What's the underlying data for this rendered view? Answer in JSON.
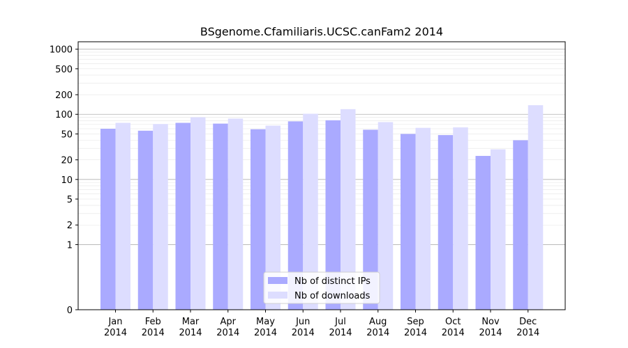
{
  "chart_data": {
    "type": "bar",
    "title": "BSgenome.Cfamiliaris.UCSC.canFam2 2014",
    "xlabel": "",
    "ylabel": "",
    "y_scale": "symlog",
    "ylim": [
      0,
      1300
    ],
    "y_ticks": [
      0,
      1,
      2,
      5,
      10,
      20,
      50,
      100,
      200,
      500,
      1000
    ],
    "grid": true,
    "legend_position": "bottom-center",
    "categories": [
      "Jan\n2014",
      "Feb\n2014",
      "Mar\n2014",
      "Apr\n2014",
      "May\n2014",
      "Jun\n2014",
      "Jul\n2014",
      "Aug\n2014",
      "Sep\n2014",
      "Oct\n2014",
      "Nov\n2014",
      "Dec\n2014"
    ],
    "series": [
      {
        "name": "Nb of distinct IPs",
        "color": "#aaaaff",
        "values": [
          60,
          56,
          74,
          72,
          59,
          78,
          81,
          58,
          50,
          48,
          23,
          40
        ]
      },
      {
        "name": "Nb of downloads",
        "color": "#ddddff",
        "values": [
          74,
          71,
          90,
          86,
          67,
          102,
          120,
          76,
          62,
          63,
          29,
          138
        ]
      }
    ]
  }
}
